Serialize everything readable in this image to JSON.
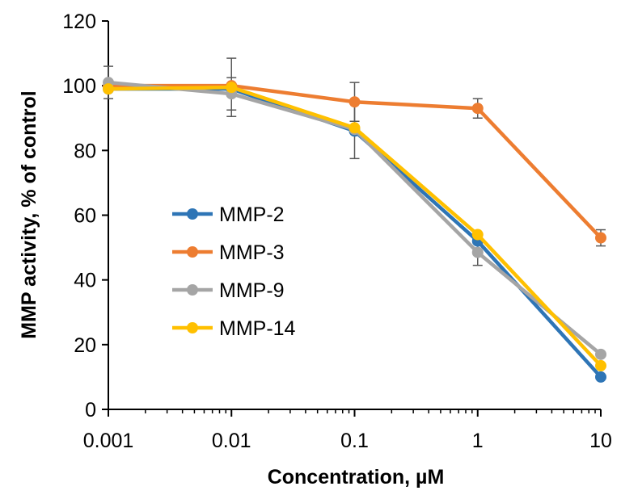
{
  "chart_data": {
    "type": "line",
    "x_scale": "log",
    "x": [
      0.001,
      0.01,
      0.1,
      1,
      10
    ],
    "xlim": [
      0.001,
      10
    ],
    "ylim": [
      0,
      120
    ],
    "xlabel": "Concentration, µM",
    "ylabel": "MMP activity, % of control",
    "x_tick_labels": [
      "0.001",
      "0.01",
      "0.1",
      "1",
      "10"
    ],
    "y_ticks": [
      0,
      20,
      40,
      60,
      80,
      100,
      120
    ],
    "y_tick_labels": [
      "0",
      "20",
      "40",
      "60",
      "80",
      "100",
      "120"
    ],
    "legend_position": "center-left",
    "series": [
      {
        "name": "MMP-2",
        "color": "#2E75B6",
        "values": [
          99,
          99,
          86,
          52,
          10
        ],
        "errors": [
          0,
          0,
          0,
          0,
          0
        ]
      },
      {
        "name": "MMP-3",
        "color": "#ED7D31",
        "values": [
          100,
          100,
          95,
          93,
          53
        ],
        "errors": [
          0,
          0,
          6,
          3,
          2.5
        ]
      },
      {
        "name": "MMP-9",
        "color": "#A5A5A5",
        "values": [
          101,
          97.5,
          86.5,
          48.5,
          17
        ],
        "errors": [
          5,
          5,
          9,
          4,
          0
        ]
      },
      {
        "name": "MMP-14",
        "color": "#FFC000",
        "values": [
          99,
          99.5,
          87,
          54,
          13.5
        ],
        "errors": [
          0,
          9,
          0,
          0,
          0
        ]
      }
    ]
  }
}
